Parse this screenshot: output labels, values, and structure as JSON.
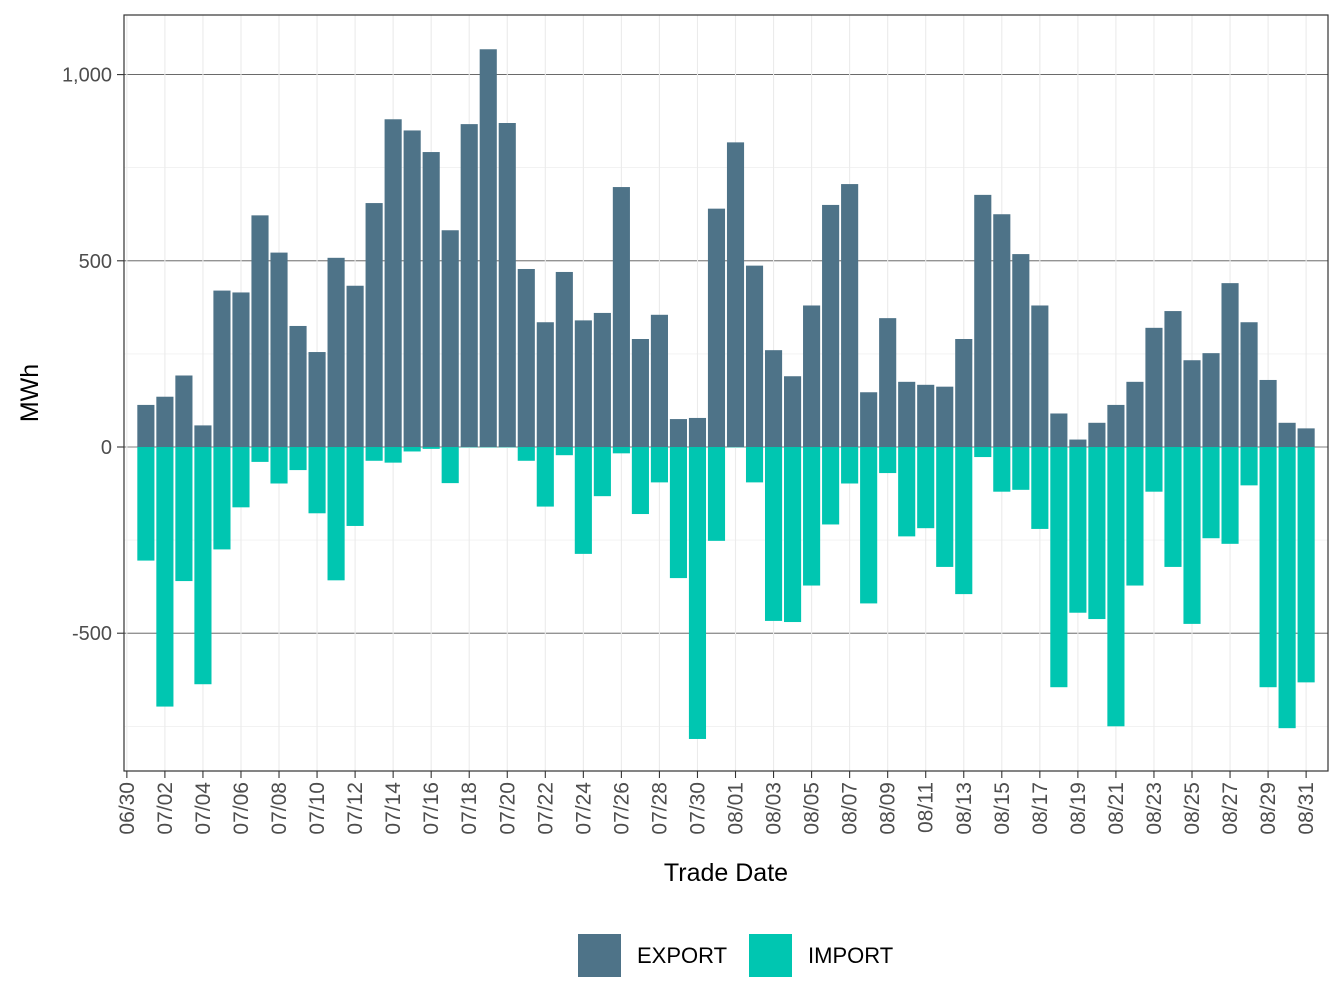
{
  "chart_data": {
    "type": "bar",
    "stacked": "diverging",
    "xlabel": "Trade Date",
    "ylabel": "MWh",
    "ylim": [
      -870,
      1160
    ],
    "y_ticks": [
      -500,
      0,
      500,
      1000
    ],
    "y_tick_labels": [
      "-500",
      "0",
      "500",
      "1,000"
    ],
    "x_tick_labels": [
      "06/30",
      "07/02",
      "07/04",
      "07/06",
      "07/08",
      "07/10",
      "07/12",
      "07/14",
      "07/16",
      "07/18",
      "07/20",
      "07/22",
      "07/24",
      "07/26",
      "07/28",
      "07/30",
      "08/01",
      "08/03",
      "08/05",
      "08/07",
      "08/09",
      "08/11",
      "08/13",
      "08/15",
      "08/17",
      "08/19",
      "08/21",
      "08/23",
      "08/25",
      "08/27",
      "08/29",
      "08/31"
    ],
    "categories": [
      "07/01",
      "07/02",
      "07/03",
      "07/04",
      "07/05",
      "07/06",
      "07/07",
      "07/08",
      "07/09",
      "07/10",
      "07/11",
      "07/12",
      "07/13",
      "07/14",
      "07/15",
      "07/16",
      "07/17",
      "07/18",
      "07/19",
      "07/20",
      "07/21",
      "07/22",
      "07/23",
      "07/24",
      "07/25",
      "07/26",
      "07/27",
      "07/28",
      "07/29",
      "07/30",
      "07/31",
      "08/01",
      "08/02",
      "08/03",
      "08/04",
      "08/05",
      "08/06",
      "08/07",
      "08/08",
      "08/09",
      "08/10",
      "08/11",
      "08/12",
      "08/13",
      "08/14",
      "08/15",
      "08/16",
      "08/17",
      "08/18",
      "08/19",
      "08/20",
      "08/21",
      "08/22",
      "08/23",
      "08/24",
      "08/25",
      "08/26",
      "08/27",
      "08/28",
      "08/29",
      "08/30",
      "08/31"
    ],
    "series": [
      {
        "name": "EXPORT",
        "color": "#4e7388",
        "values": [
          113,
          135,
          192,
          58,
          420,
          415,
          622,
          522,
          325,
          255,
          508,
          433,
          655,
          880,
          850,
          792,
          582,
          867,
          1068,
          870,
          478,
          335,
          470,
          340,
          360,
          698,
          290,
          355,
          75,
          78,
          640,
          818,
          487,
          260,
          190,
          380,
          650,
          706,
          147,
          346,
          175,
          167,
          162,
          290,
          677,
          625,
          518,
          380,
          90,
          20,
          65,
          113,
          175,
          320,
          365,
          233,
          252,
          440,
          335,
          180,
          65,
          50
        ]
      },
      {
        "name": "IMPORT",
        "color": "#00c6b1",
        "values": [
          -305,
          -697,
          -360,
          -637,
          -275,
          -162,
          -40,
          -98,
          -62,
          -178,
          -358,
          -212,
          -37,
          -42,
          -12,
          -5,
          -97,
          -1,
          -1,
          -1,
          -37,
          -160,
          -22,
          -287,
          -132,
          -17,
          -180,
          -95,
          -352,
          -784,
          -252,
          -1,
          -95,
          -467,
          -470,
          -372,
          -208,
          -98,
          -420,
          -70,
          -240,
          -218,
          -322,
          -395,
          -27,
          -120,
          -115,
          -220,
          -645,
          -445,
          -462,
          -750,
          -372,
          -120,
          -322,
          -475,
          -245,
          -260,
          -103,
          -645,
          -755,
          -632
        ]
      }
    ],
    "legend": {
      "position": "bottom",
      "entries": [
        "EXPORT",
        "IMPORT"
      ]
    },
    "grid": true
  }
}
